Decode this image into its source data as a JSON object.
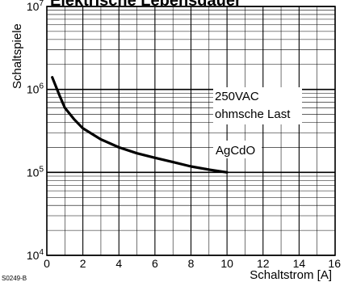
{
  "chart_data": {
    "type": "line",
    "title": "Elektrische Lebensdauer",
    "xlabel": "Schaltstrom [A]",
    "ylabel": "Schaltspiele",
    "xlim": [
      0,
      16
    ],
    "ylim": [
      10000,
      10000000
    ],
    "yscale": "log",
    "grid": true,
    "x_ticks": [
      "0",
      "2",
      "4",
      "6",
      "8",
      "10",
      "12",
      "14",
      "16"
    ],
    "y_ticks": [
      {
        "base": "10",
        "exp": "4",
        "value": 10000
      },
      {
        "base": "10",
        "exp": "5",
        "value": 100000
      },
      {
        "base": "10",
        "exp": "6",
        "value": 1000000
      },
      {
        "base": "10",
        "exp": "7",
        "value": 10000000
      }
    ],
    "series": [
      {
        "name": "AgCdO",
        "x": [
          0.3,
          0.7,
          1.0,
          1.5,
          2.0,
          3.0,
          4.0,
          5.0,
          6.0,
          7.0,
          8.0,
          9.0,
          10.0
        ],
        "y": [
          1400000,
          850000,
          600000,
          440000,
          340000,
          250000,
          200000,
          170000,
          150000,
          133000,
          118000,
          108000,
          100000
        ]
      }
    ],
    "annotations": [
      "250VAC",
      "ohmsche Last",
      "AgCdO"
    ],
    "figure_code": "S0249-B"
  }
}
